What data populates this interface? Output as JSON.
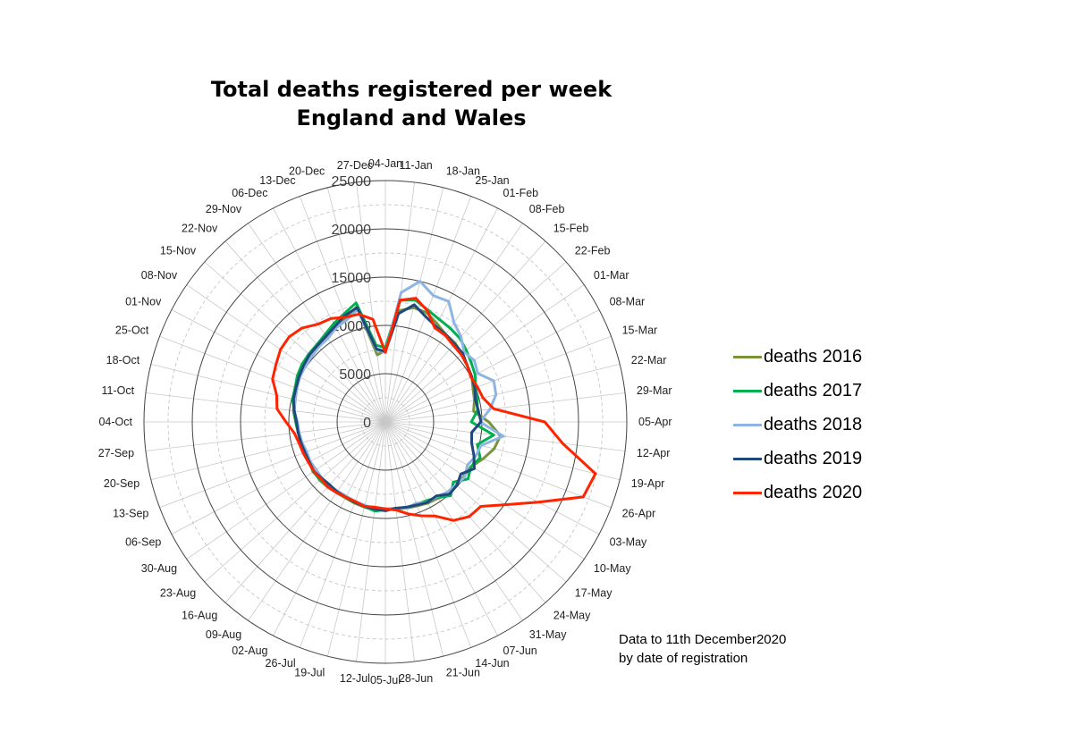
{
  "chart_data": {
    "type": "radar",
    "title_lines": [
      "Total deaths registered per week",
      "England and Wales"
    ],
    "categories": [
      "04-Jan",
      "11-Jan",
      "18-Jan",
      "25-Jan",
      "01-Feb",
      "08-Feb",
      "15-Feb",
      "22-Feb",
      "01-Mar",
      "08-Mar",
      "15-Mar",
      "22-Mar",
      "29-Mar",
      "05-Apr",
      "12-Apr",
      "19-Apr",
      "26-Apr",
      "03-May",
      "10-May",
      "17-May",
      "24-May",
      "31-May",
      "07-Jun",
      "14-Jun",
      "21-Jun",
      "28-Jun",
      "05-Jul",
      "12-Jul",
      "19-Jul",
      "26-Jul",
      "02-Aug",
      "09-Aug",
      "16-Aug",
      "23-Aug",
      "30-Aug",
      "06-Sep",
      "13-Sep",
      "20-Sep",
      "27-Sep",
      "04-Oct",
      "11-Oct",
      "18-Oct",
      "25-Oct",
      "01-Nov",
      "08-Nov",
      "15-Nov",
      "22-Nov",
      "29-Nov",
      "06-Dec",
      "13-Dec",
      "20-Dec",
      "27-Dec"
    ],
    "radial_axis": {
      "min": 0,
      "max": 25000,
      "ticks": [
        0,
        5000,
        10000,
        15000,
        20000,
        25000
      ]
    },
    "grid": true,
    "legend_position": "right",
    "series": [
      {
        "name": "deaths 2016",
        "color": "#77933C",
        "values": [
          7400,
          11600,
          12200,
          12100,
          11500,
          11000,
          10900,
          10600,
          10300,
          10100,
          9700,
          9500,
          9200,
          10700,
          12000,
          11600,
          10800,
          10000,
          9900,
          9800,
          10000,
          9600,
          9500,
          9300,
          9200,
          9100,
          9000,
          9200,
          9100,
          9000,
          8900,
          8900,
          9000,
          9100,
          9000,
          8900,
          9000,
          9100,
          9000,
          9300,
          9600,
          9700,
          10000,
          10100,
          10200,
          10400,
          10500,
          10700,
          11000,
          11600,
          12300,
          7000
        ]
      },
      {
        "name": "deaths 2017",
        "color": "#00B050",
        "values": [
          7700,
          12700,
          13000,
          12400,
          12000,
          11800,
          11600,
          11200,
          10800,
          10500,
          10000,
          9800,
          9600,
          8900,
          11300,
          9800,
          10500,
          10000,
          10400,
          9400,
          10200,
          9500,
          9200,
          9100,
          9200,
          9000,
          9100,
          9300,
          9000,
          8900,
          8800,
          8900,
          8900,
          9000,
          9100,
          8900,
          9000,
          9000,
          9100,
          9300,
          9500,
          9900,
          10000,
          10300,
          10500,
          10600,
          10700,
          11000,
          11500,
          12000,
          12700,
          8000
        ]
      },
      {
        "name": "deaths 2018",
        "color": "#8EB4E3",
        "values": [
          7200,
          13500,
          15000,
          14000,
          14100,
          12500,
          11800,
          10900,
          11200,
          10800,
          12000,
          11800,
          10900,
          9800,
          12300,
          10200,
          10000,
          9600,
          10000,
          9800,
          9700,
          9400,
          9400,
          9000,
          9200,
          9000,
          9000,
          9100,
          8900,
          8800,
          8700,
          8700,
          8800,
          8800,
          8700,
          8800,
          8700,
          8900,
          9000,
          9100,
          9500,
          9600,
          9800,
          10000,
          10100,
          10200,
          10400,
          10500,
          11000,
          11300,
          12000,
          7500
        ]
      },
      {
        "name": "deaths 2019",
        "color": "#1F497D",
        "values": [
          7300,
          11300,
          12500,
          11700,
          11200,
          11000,
          10800,
          10700,
          10300,
          10100,
          9900,
          9600,
          9700,
          9900,
          9000,
          9200,
          9800,
          10400,
          9500,
          9900,
          10000,
          9300,
          9400,
          9200,
          9100,
          9000,
          9200,
          9100,
          9000,
          8900,
          8800,
          8800,
          8700,
          8800,
          9000,
          8900,
          8900,
          9000,
          9100,
          9200,
          9500,
          9800,
          9900,
          10100,
          10300,
          10500,
          10600,
          10800,
          11200,
          11800,
          12200,
          7600
        ]
      },
      {
        "name": "deaths 2020",
        "color": "#FF2400",
        "values": [
          7200,
          12700,
          13200,
          12300,
          11000,
          10900,
          10600,
          10500,
          10300,
          10000,
          10200,
          10400,
          11300,
          16500,
          18500,
          22400,
          21900,
          17900,
          15100,
          13200,
          13100,
          12400,
          11000,
          10400,
          9800,
          9200,
          9000,
          8900,
          9000,
          8800,
          8800,
          8900,
          9000,
          8900,
          9000,
          9000,
          9100,
          9200,
          9500,
          10300,
          11300,
          11600,
          12500,
          12800,
          13200,
          13300,
          13000,
          12300,
          12100,
          11600,
          11500,
          10700
        ]
      }
    ]
  },
  "note_lines": [
    "Data to 11th December2020",
    "by date of registration"
  ]
}
